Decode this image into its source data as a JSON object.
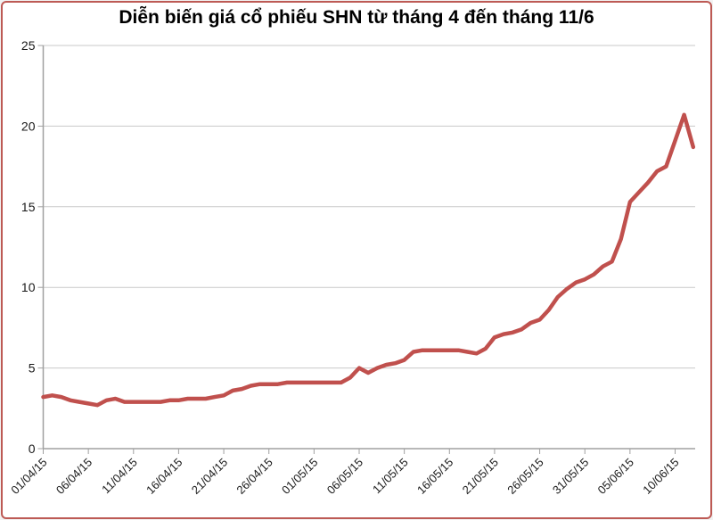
{
  "frame": {
    "border_color": "#bd5a55",
    "background_color": "#ffffff"
  },
  "chart_data": {
    "type": "line",
    "title": "Diễn biến giá cổ phiếu SHN từ tháng 4 đến tháng 11/6",
    "xlabel": "",
    "ylabel": "",
    "legend": "none",
    "grid": "horizontal",
    "line_color": "#c0504d",
    "text_color": "#1a1a1a",
    "ylim": [
      0,
      25
    ],
    "y_ticks": [
      0,
      5,
      10,
      15,
      20,
      25
    ],
    "x_start_label": "01/04/15",
    "points_are_daily": true,
    "x_tick_days": [
      0,
      5,
      10,
      15,
      20,
      25,
      30,
      35,
      40,
      45,
      50,
      55,
      60,
      65,
      70
    ],
    "x_tick_labels": [
      "01/04/15",
      "06/04/15",
      "11/04/15",
      "16/04/15",
      "21/04/15",
      "26/04/15",
      "01/05/15",
      "06/05/15",
      "11/05/15",
      "16/05/15",
      "21/05/15",
      "26/05/15",
      "31/05/15",
      "05/06/15",
      "10/06/15"
    ],
    "values": [
      3.2,
      3.3,
      3.2,
      3.0,
      2.9,
      2.8,
      2.7,
      3.0,
      3.1,
      2.9,
      2.9,
      2.9,
      2.9,
      2.9,
      3.0,
      3.0,
      3.1,
      3.1,
      3.1,
      3.2,
      3.3,
      3.6,
      3.7,
      3.9,
      4.0,
      4.0,
      4.0,
      4.1,
      4.1,
      4.1,
      4.1,
      4.1,
      4.1,
      4.1,
      4.4,
      5.0,
      4.7,
      5.0,
      5.2,
      5.3,
      5.5,
      6.0,
      6.1,
      6.1,
      6.1,
      6.1,
      6.1,
      6.0,
      5.9,
      6.2,
      6.9,
      7.1,
      7.2,
      7.4,
      7.8,
      8.0,
      8.6,
      9.4,
      9.9,
      10.3,
      10.5,
      10.8,
      11.3,
      11.6,
      13.0,
      15.3,
      15.9,
      16.5,
      17.2,
      17.5,
      19.1,
      20.7,
      18.7
    ]
  }
}
